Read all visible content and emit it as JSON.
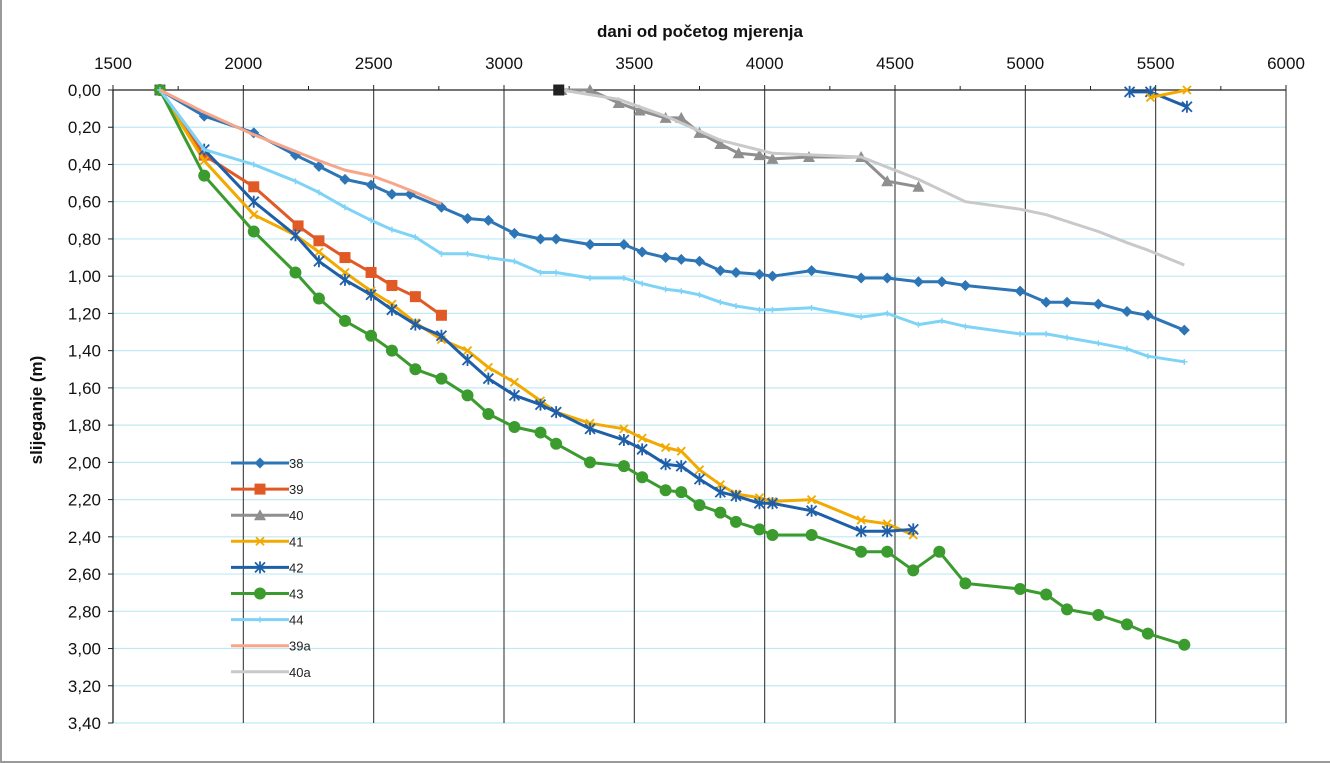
{
  "chart_data": {
    "type": "line",
    "title": "",
    "xlabel": "dani od početog mjerenja",
    "ylabel": "slijeganje (m)",
    "xlim": [
      1500,
      6000
    ],
    "ylim": [
      0,
      3.4
    ],
    "y_inverted": true,
    "x_axis_position": "top",
    "x_ticks": [
      "1500",
      "2000",
      "2500",
      "3000",
      "3500",
      "4000",
      "4500",
      "5000",
      "5500",
      "6000"
    ],
    "y_ticks": [
      "0,00",
      "0,20",
      "0,40",
      "0,60",
      "0,80",
      "1,00",
      "1,20",
      "1,40",
      "1,60",
      "1,80",
      "2,00",
      "2,20",
      "2,40",
      "2,60",
      "2,80",
      "3,00",
      "3,20",
      "3,40"
    ],
    "grid": {
      "vertical": true,
      "horizontal": true
    },
    "legend_position": "left-bottom",
    "series": [
      {
        "name": "38",
        "color": "#2e75b6",
        "marker": "diamond",
        "points": [
          [
            1680,
            0
          ],
          [
            1850,
            0.14
          ],
          [
            2040,
            0.23
          ],
          [
            2200,
            0.35
          ],
          [
            2290,
            0.41
          ],
          [
            2390,
            0.48
          ],
          [
            2490,
            0.51
          ],
          [
            2570,
            0.56
          ],
          [
            2640,
            0.56
          ],
          [
            2760,
            0.63
          ],
          [
            2860,
            0.69
          ],
          [
            2940,
            0.7
          ],
          [
            3040,
            0.77
          ],
          [
            3140,
            0.8
          ],
          [
            3200,
            0.8
          ],
          [
            3330,
            0.83
          ],
          [
            3460,
            0.83
          ],
          [
            3530,
            0.87
          ],
          [
            3620,
            0.9
          ],
          [
            3680,
            0.91
          ],
          [
            3750,
            0.92
          ],
          [
            3830,
            0.97
          ],
          [
            3890,
            0.98
          ],
          [
            3980,
            0.99
          ],
          [
            4030,
            1.0
          ],
          [
            4180,
            0.97
          ],
          [
            4370,
            1.01
          ],
          [
            4470,
            1.01
          ],
          [
            4590,
            1.03
          ],
          [
            4680,
            1.03
          ],
          [
            4770,
            1.05
          ],
          [
            4980,
            1.08
          ],
          [
            5080,
            1.14
          ],
          [
            5160,
            1.14
          ],
          [
            5280,
            1.15
          ],
          [
            5390,
            1.19
          ],
          [
            5470,
            1.21
          ],
          [
            5610,
            1.29
          ]
        ]
      },
      {
        "name": "39",
        "color": "#e15a25",
        "marker": "square",
        "points": [
          [
            1680,
            0
          ],
          [
            1850,
            0.35
          ],
          [
            2040,
            0.52
          ],
          [
            2210,
            0.73
          ],
          [
            2290,
            0.81
          ],
          [
            2390,
            0.9
          ],
          [
            2490,
            0.98
          ],
          [
            2570,
            1.05
          ],
          [
            2660,
            1.11
          ],
          [
            2760,
            1.21
          ]
        ]
      },
      {
        "name": "40",
        "color": "#8f8f8f",
        "marker": "triangle",
        "points": [
          [
            3220,
            0
          ],
          [
            3330,
            0
          ],
          [
            3440,
            0.07
          ],
          [
            3520,
            0.11
          ],
          [
            3620,
            0.15
          ],
          [
            3680,
            0.15
          ],
          [
            3750,
            0.23
          ],
          [
            3830,
            0.29
          ],
          [
            3900,
            0.34
          ],
          [
            3980,
            0.35
          ],
          [
            4030,
            0.37
          ],
          [
            4170,
            0.36
          ],
          [
            4370,
            0.36
          ],
          [
            4470,
            0.49
          ],
          [
            4590,
            0.52
          ]
        ]
      },
      {
        "name": "41",
        "color": "#f2a900",
        "marker": "x",
        "points": [
          [
            1680,
            0
          ],
          [
            1850,
            0.38
          ],
          [
            2040,
            0.67
          ],
          [
            2200,
            0.78
          ],
          [
            2290,
            0.87
          ],
          [
            2390,
            0.98
          ],
          [
            2490,
            1.08
          ],
          [
            2570,
            1.15
          ],
          [
            2660,
            1.25
          ],
          [
            2760,
            1.34
          ],
          [
            2860,
            1.4
          ],
          [
            2940,
            1.49
          ],
          [
            3040,
            1.57
          ],
          [
            3140,
            1.67
          ],
          [
            3200,
            1.73
          ],
          [
            3330,
            1.79
          ],
          [
            3460,
            1.82
          ],
          [
            3530,
            1.87
          ],
          [
            3620,
            1.92
          ],
          [
            3680,
            1.94
          ],
          [
            3750,
            2.04
          ],
          [
            3830,
            2.12
          ],
          [
            3890,
            2.17
          ],
          [
            3980,
            2.19
          ],
          [
            4030,
            2.21
          ],
          [
            4180,
            2.2
          ],
          [
            4370,
            2.31
          ],
          [
            4470,
            2.33
          ],
          [
            4570,
            2.39
          ]
        ]
      },
      {
        "name": "42",
        "color": "#1e5fa8",
        "marker": "asterisk",
        "points": [
          [
            1680,
            0
          ],
          [
            1850,
            0.32
          ],
          [
            2040,
            0.6
          ],
          [
            2200,
            0.78
          ],
          [
            2290,
            0.92
          ],
          [
            2390,
            1.02
          ],
          [
            2490,
            1.1
          ],
          [
            2570,
            1.18
          ],
          [
            2660,
            1.26
          ],
          [
            2760,
            1.32
          ],
          [
            2860,
            1.45
          ],
          [
            2940,
            1.55
          ],
          [
            3040,
            1.64
          ],
          [
            3140,
            1.69
          ],
          [
            3200,
            1.73
          ],
          [
            3330,
            1.82
          ],
          [
            3460,
            1.88
          ],
          [
            3530,
            1.93
          ],
          [
            3620,
            2.01
          ],
          [
            3680,
            2.02
          ],
          [
            3750,
            2.09
          ],
          [
            3830,
            2.16
          ],
          [
            3890,
            2.18
          ],
          [
            3980,
            2.22
          ],
          [
            4030,
            2.22
          ],
          [
            4180,
            2.26
          ],
          [
            4370,
            2.37
          ],
          [
            4470,
            2.37
          ],
          [
            4570,
            2.36
          ]
        ]
      },
      {
        "name": "43",
        "color": "#3c9b2e",
        "marker": "circle",
        "points": [
          [
            1680,
            0
          ],
          [
            1850,
            0.46
          ],
          [
            2040,
            0.76
          ],
          [
            2200,
            0.98
          ],
          [
            2290,
            1.12
          ],
          [
            2390,
            1.24
          ],
          [
            2490,
            1.32
          ],
          [
            2570,
            1.4
          ],
          [
            2660,
            1.5
          ],
          [
            2760,
            1.55
          ],
          [
            2860,
            1.64
          ],
          [
            2940,
            1.74
          ],
          [
            3040,
            1.81
          ],
          [
            3140,
            1.84
          ],
          [
            3200,
            1.9
          ],
          [
            3330,
            2.0
          ],
          [
            3460,
            2.02
          ],
          [
            3530,
            2.08
          ],
          [
            3620,
            2.15
          ],
          [
            3680,
            2.16
          ],
          [
            3750,
            2.23
          ],
          [
            3830,
            2.27
          ],
          [
            3890,
            2.32
          ],
          [
            3980,
            2.36
          ],
          [
            4030,
            2.39
          ],
          [
            4180,
            2.39
          ],
          [
            4370,
            2.48
          ],
          [
            4470,
            2.48
          ],
          [
            4570,
            2.58
          ],
          [
            4670,
            2.48
          ],
          [
            4770,
            2.65
          ],
          [
            4980,
            2.68
          ],
          [
            5080,
            2.71
          ],
          [
            5160,
            2.79
          ],
          [
            5280,
            2.82
          ],
          [
            5390,
            2.87
          ],
          [
            5470,
            2.92
          ],
          [
            5610,
            2.98
          ]
        ]
      },
      {
        "name": "44",
        "color": "#7fd3f5",
        "marker": "plus",
        "points": [
          [
            1680,
            0
          ],
          [
            1850,
            0.32
          ],
          [
            2040,
            0.4
          ],
          [
            2200,
            0.49
          ],
          [
            2290,
            0.55
          ],
          [
            2390,
            0.63
          ],
          [
            2490,
            0.7
          ],
          [
            2570,
            0.75
          ],
          [
            2660,
            0.79
          ],
          [
            2760,
            0.88
          ],
          [
            2860,
            0.88
          ],
          [
            2940,
            0.9
          ],
          [
            3040,
            0.92
          ],
          [
            3140,
            0.98
          ],
          [
            3200,
            0.98
          ],
          [
            3330,
            1.01
          ],
          [
            3460,
            1.01
          ],
          [
            3530,
            1.04
          ],
          [
            3620,
            1.07
          ],
          [
            3680,
            1.08
          ],
          [
            3750,
            1.1
          ],
          [
            3830,
            1.14
          ],
          [
            3890,
            1.16
          ],
          [
            3980,
            1.18
          ],
          [
            4030,
            1.18
          ],
          [
            4180,
            1.17
          ],
          [
            4370,
            1.22
          ],
          [
            4470,
            1.2
          ],
          [
            4590,
            1.26
          ],
          [
            4680,
            1.24
          ],
          [
            4770,
            1.27
          ],
          [
            4980,
            1.31
          ],
          [
            5080,
            1.31
          ],
          [
            5160,
            1.33
          ],
          [
            5280,
            1.36
          ],
          [
            5390,
            1.39
          ],
          [
            5470,
            1.43
          ],
          [
            5610,
            1.46
          ]
        ]
      },
      {
        "name": "39a",
        "color": "#f7a68a",
        "marker": "none",
        "points": [
          [
            1680,
            0
          ],
          [
            1850,
            0.12
          ],
          [
            2040,
            0.24
          ],
          [
            2200,
            0.33
          ],
          [
            2290,
            0.38
          ],
          [
            2390,
            0.43
          ],
          [
            2490,
            0.46
          ],
          [
            2570,
            0.5
          ],
          [
            2660,
            0.55
          ],
          [
            2760,
            0.61
          ]
        ]
      },
      {
        "name": "40a",
        "color": "#c9c9c9",
        "marker": "none",
        "points": [
          [
            3220,
            0
          ],
          [
            3440,
            0.05
          ],
          [
            3620,
            0.14
          ],
          [
            3830,
            0.27
          ],
          [
            4030,
            0.34
          ],
          [
            4370,
            0.36
          ],
          [
            4590,
            0.48
          ],
          [
            4770,
            0.6
          ],
          [
            4980,
            0.64
          ],
          [
            5080,
            0.67
          ],
          [
            5280,
            0.76
          ],
          [
            5390,
            0.82
          ],
          [
            5470,
            0.86
          ],
          [
            5610,
            0.94
          ]
        ]
      },
      {
        "name": "",
        "color": "#1e5fa8",
        "marker": "asterisk",
        "legend": false,
        "points": [
          [
            5400,
            0.01
          ],
          [
            5480,
            0.01
          ],
          [
            5620,
            0.09
          ]
        ]
      },
      {
        "name": "",
        "color": "#f2a900",
        "marker": "x",
        "legend": false,
        "points": [
          [
            5480,
            0.04
          ],
          [
            5620,
            0
          ]
        ]
      },
      {
        "name": "",
        "color": "#222222",
        "marker": "square",
        "legend": false,
        "points": [
          [
            3210,
            0
          ]
        ]
      }
    ]
  }
}
